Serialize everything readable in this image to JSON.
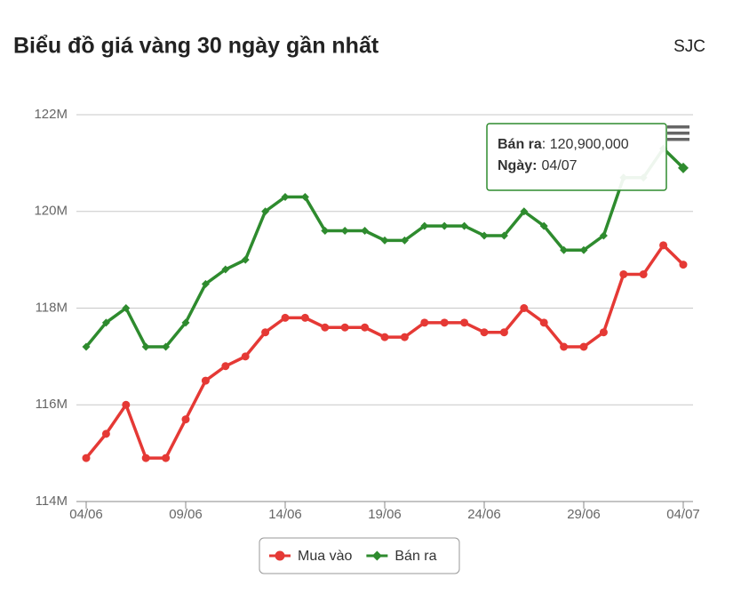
{
  "chart_data": {
    "type": "line",
    "title": "Biểu đồ giá vàng 30 ngày gần nhất",
    "subtitle": "SJC",
    "x": [
      "04/06",
      "05/06",
      "06/06",
      "07/06",
      "08/06",
      "09/06",
      "10/06",
      "11/06",
      "12/06",
      "13/06",
      "14/06",
      "15/06",
      "16/06",
      "17/06",
      "18/06",
      "19/06",
      "20/06",
      "21/06",
      "22/06",
      "23/06",
      "24/06",
      "25/06",
      "26/06",
      "27/06",
      "28/06",
      "29/06",
      "30/06",
      "01/07",
      "02/07",
      "03/07",
      "04/07"
    ],
    "xtick_step": 5,
    "series": [
      {
        "name": "Mua vào",
        "color": "#e53935",
        "marker": "circle",
        "values": [
          114900000,
          115400000,
          116000000,
          114900000,
          114900000,
          115700000,
          116500000,
          116800000,
          117000000,
          117500000,
          117800000,
          117800000,
          117600000,
          117600000,
          117600000,
          117400000,
          117400000,
          117700000,
          117700000,
          117700000,
          117500000,
          117500000,
          118000000,
          117700000,
          117200000,
          117200000,
          117500000,
          118700000,
          118700000,
          119300000,
          118900000
        ]
      },
      {
        "name": "Bán ra",
        "color": "#2e8b2e",
        "marker": "diamond",
        "values": [
          117200000,
          117700000,
          118000000,
          117200000,
          117200000,
          117700000,
          118500000,
          118800000,
          119000000,
          120000000,
          120300000,
          120300000,
          119600000,
          119600000,
          119600000,
          119400000,
          119400000,
          119700000,
          119700000,
          119700000,
          119500000,
          119500000,
          120000000,
          119700000,
          119200000,
          119200000,
          119500000,
          120700000,
          120700000,
          121300000,
          120900000
        ]
      }
    ],
    "ylim": [
      114000000,
      122000000
    ],
    "yticks": [
      {
        "value": 114000000,
        "label": "114M"
      },
      {
        "value": 116000000,
        "label": "116M"
      },
      {
        "value": 118000000,
        "label": "118M"
      },
      {
        "value": 120000000,
        "label": "120M"
      },
      {
        "value": 122000000,
        "label": "122M"
      }
    ],
    "grid": true,
    "legend": "bottom",
    "tooltip": {
      "name": "Bán ra",
      "text": ": 120,900,000",
      "date_label": "Ngày:",
      "date": "04/07"
    }
  }
}
